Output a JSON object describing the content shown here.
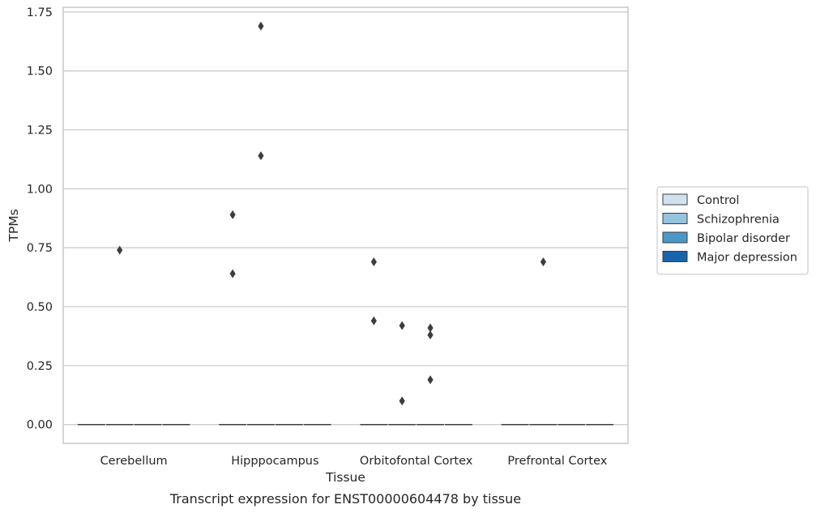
{
  "chart_data": {
    "type": "box",
    "caption": "Transcript expression for ENST00000604478 by tissue",
    "xlabel": "Tissue",
    "ylabel": "TPMs",
    "ylim": [
      -0.08,
      1.77
    ],
    "yticks": [
      "0.00",
      "0.25",
      "0.50",
      "0.75",
      "1.00",
      "1.25",
      "1.50",
      "1.75"
    ],
    "categories": [
      "Cerebellum",
      "Hipppocampus",
      "Orbitofontal Cortex",
      "Prefrontal Cortex"
    ],
    "grid": "horizontal",
    "legend_position": "right",
    "series": [
      {
        "name": "Control",
        "color": "#d0e1f2",
        "boxes": [
          {
            "category": "Cerebellum",
            "median": 0,
            "q1": 0,
            "q3": 0,
            "whisker_low": 0,
            "whisker_high": 0,
            "outliers": []
          },
          {
            "category": "Hipppocampus",
            "median": 0,
            "q1": 0,
            "q3": 0,
            "whisker_low": 0,
            "whisker_high": 0,
            "outliers": [
              0.89,
              0.64
            ]
          },
          {
            "category": "Orbitofontal Cortex",
            "median": 0,
            "q1": 0,
            "q3": 0,
            "whisker_low": 0,
            "whisker_high": 0,
            "outliers": [
              0.69,
              0.44
            ]
          },
          {
            "category": "Prefrontal Cortex",
            "median": 0,
            "q1": 0,
            "q3": 0,
            "whisker_low": 0,
            "whisker_high": 0,
            "outliers": []
          }
        ]
      },
      {
        "name": "Schizophrenia",
        "color": "#94c4df",
        "boxes": [
          {
            "category": "Cerebellum",
            "median": 0,
            "q1": 0,
            "q3": 0,
            "whisker_low": 0,
            "whisker_high": 0,
            "outliers": [
              0.74
            ]
          },
          {
            "category": "Hipppocampus",
            "median": 0,
            "q1": 0,
            "q3": 0,
            "whisker_low": 0,
            "whisker_high": 0,
            "outliers": [
              1.69,
              1.14
            ]
          },
          {
            "category": "Orbitofontal Cortex",
            "median": 0,
            "q1": 0,
            "q3": 0,
            "whisker_low": 0,
            "whisker_high": 0,
            "outliers": [
              0.42,
              0.1
            ]
          },
          {
            "category": "Prefrontal Cortex",
            "median": 0,
            "q1": 0,
            "q3": 0,
            "whisker_low": 0,
            "whisker_high": 0,
            "outliers": [
              0.69
            ]
          }
        ]
      },
      {
        "name": "Bipolar disorder",
        "color": "#4a98c9",
        "boxes": [
          {
            "category": "Cerebellum",
            "median": 0,
            "q1": 0,
            "q3": 0,
            "whisker_low": 0,
            "whisker_high": 0,
            "outliers": []
          },
          {
            "category": "Hipppocampus",
            "median": 0,
            "q1": 0,
            "q3": 0,
            "whisker_low": 0,
            "whisker_high": 0,
            "outliers": []
          },
          {
            "category": "Orbitofontal Cortex",
            "median": 0,
            "q1": 0,
            "q3": 0,
            "whisker_low": 0,
            "whisker_high": 0,
            "outliers": [
              0.41,
              0.38,
              0.19
            ]
          },
          {
            "category": "Prefrontal Cortex",
            "median": 0,
            "q1": 0,
            "q3": 0,
            "whisker_low": 0,
            "whisker_high": 0,
            "outliers": []
          }
        ]
      },
      {
        "name": "Major depression",
        "color": "#1764ab",
        "boxes": [
          {
            "category": "Cerebellum",
            "median": 0,
            "q1": 0,
            "q3": 0,
            "whisker_low": 0,
            "whisker_high": 0,
            "outliers": []
          },
          {
            "category": "Hipppocampus",
            "median": 0,
            "q1": 0,
            "q3": 0,
            "whisker_low": 0,
            "whisker_high": 0,
            "outliers": []
          },
          {
            "category": "Orbitofontal Cortex",
            "median": 0,
            "q1": 0,
            "q3": 0,
            "whisker_low": 0,
            "whisker_high": 0,
            "outliers": []
          },
          {
            "category": "Prefrontal Cortex",
            "median": 0,
            "q1": 0,
            "q3": 0,
            "whisker_low": 0,
            "whisker_high": 0,
            "outliers": []
          }
        ]
      }
    ],
    "colors": {
      "grid": "#cccccc",
      "frame": "#cccccc",
      "box_edge": "#3d3d3d",
      "outlier": "#3d3d3d"
    }
  }
}
